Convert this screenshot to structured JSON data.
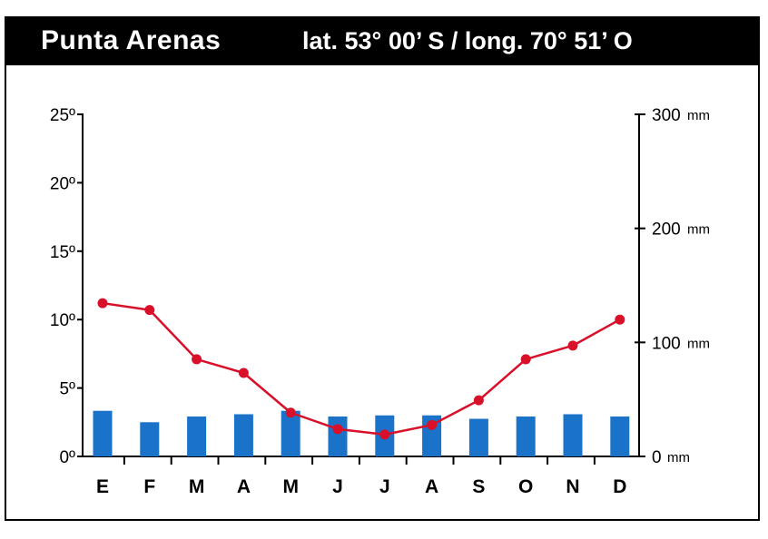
{
  "title": {
    "name": "Punta Arenas",
    "coords": "lat. 53° 00’ S / long. 70° 51’ O"
  },
  "chart_data": {
    "type": "bar",
    "categories": [
      "E",
      "F",
      "M",
      "A",
      "M",
      "J",
      "J",
      "A",
      "S",
      "O",
      "N",
      "D"
    ],
    "series": [
      {
        "type": "bar",
        "axis": "right",
        "color": "#1a73c8",
        "values": [
          40,
          30,
          35,
          37,
          40,
          35,
          36,
          36,
          33,
          35,
          37,
          35
        ]
      },
      {
        "type": "line",
        "axis": "left",
        "color": "#d8102a",
        "values": [
          11.2,
          10.7,
          7.1,
          6.1,
          3.2,
          2.0,
          1.6,
          2.3,
          4.1,
          7.1,
          8.1,
          10.0
        ]
      }
    ],
    "left_axis": {
      "ylim": [
        0,
        25
      ],
      "ticks": [
        0,
        5,
        10,
        15,
        20,
        25
      ],
      "tick_labels": [
        "0º",
        "5º",
        "10º",
        "15º",
        "20º",
        "25º"
      ]
    },
    "right_axis": {
      "ylim": [
        0,
        300
      ],
      "ticks": [
        0,
        100,
        200,
        300
      ],
      "tick_values": [
        "0",
        "100",
        "200",
        "300"
      ],
      "unit": "mm"
    },
    "grid": false
  }
}
